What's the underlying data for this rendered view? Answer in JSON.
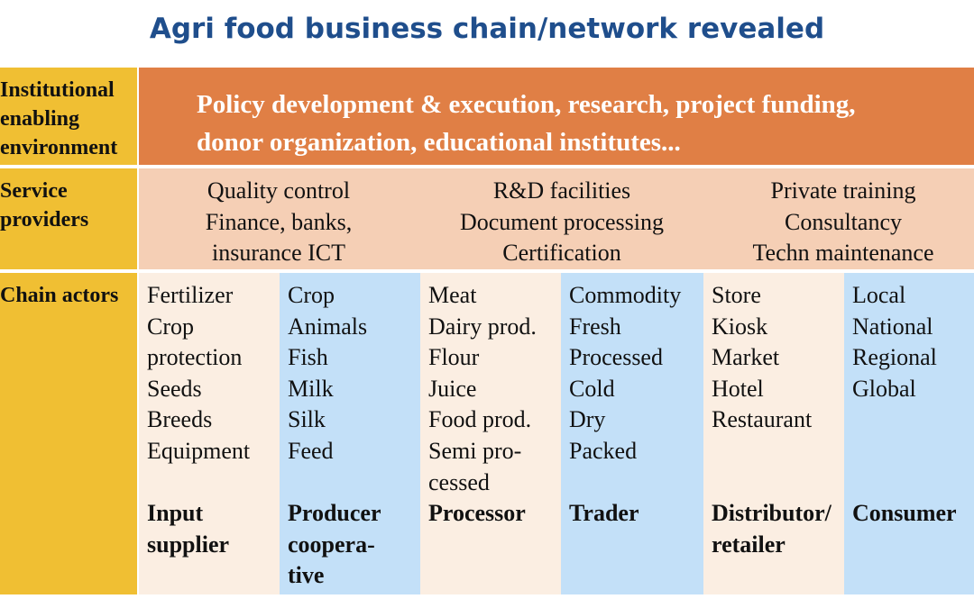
{
  "title": "Agri food business chain/network revealed",
  "rows": {
    "institutional": {
      "label": "Institutional\nenabling\nenvironment",
      "text_line1": "Policy development & execution, research, project funding,",
      "text_line2": "donor organization, educational institutes..."
    },
    "service": {
      "label": "Service\nproviders",
      "groups": [
        {
          "lines": [
            "Quality control",
            "Finance, banks,",
            "insurance ICT"
          ]
        },
        {
          "lines": [
            "R&D facilities",
            "Document processing",
            "Certification"
          ]
        },
        {
          "lines": [
            "Private training",
            "Consultancy",
            "Techn maintenance"
          ]
        }
      ]
    },
    "chain": {
      "label": "Chain actors",
      "columns": [
        {
          "items": [
            "Fertilizer",
            "Crop",
            "protection",
            "Seeds",
            "Breeds",
            "Equipment"
          ],
          "role": "Input\nsupplier"
        },
        {
          "items": [
            "Crop",
            "Animals",
            "Fish",
            "Milk",
            "Silk",
            "Feed"
          ],
          "role": "Producer\ncoopera-\ntive"
        },
        {
          "items": [
            "Meat",
            "Dairy prod.",
            "Flour",
            "Juice",
            "Food prod.",
            "Semi pro-",
            "cessed"
          ],
          "role": "Processor"
        },
        {
          "items": [
            "Commodity",
            "Fresh",
            "Processed",
            "Cold",
            "Dry",
            "Packed"
          ],
          "role": "Trader"
        },
        {
          "items": [
            "Store",
            "Kiosk",
            "Market",
            "Hotel",
            "Restaurant"
          ],
          "role": "Distributor/\nretailer"
        },
        {
          "items": [
            "Local",
            "National",
            "Regional",
            "Global"
          ],
          "role": "Consumer"
        }
      ]
    }
  },
  "colors": {
    "title": "#1f4e8c",
    "label_band": "#f0bf33",
    "institutional": "#e07f45",
    "service": "#f5cfb5",
    "cream": "#fbeee2",
    "blue": "#c3e0f8"
  }
}
